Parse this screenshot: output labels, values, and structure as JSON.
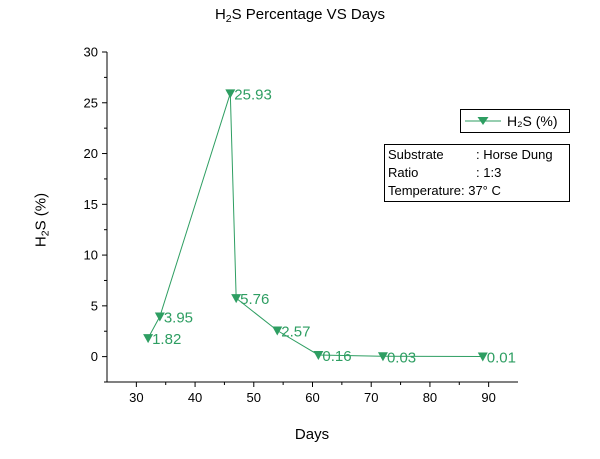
{
  "chart_data": {
    "type": "line",
    "title": {
      "pre": "H",
      "sub": "2",
      "post": "S Percentage VS Days"
    },
    "xlabel": "Days",
    "ylabel": {
      "pre": "H",
      "sub": "2",
      "post": "S (%)"
    },
    "xlim": [
      25,
      95
    ],
    "ylim": [
      -2.5,
      30
    ],
    "x_ticks": [
      30,
      40,
      50,
      60,
      70,
      80,
      90
    ],
    "y_ticks": [
      0,
      5,
      10,
      15,
      20,
      25,
      30
    ],
    "grid": false,
    "series": [
      {
        "name": "H₂S (%)",
        "x": [
          32,
          34,
          46,
          47,
          54,
          61,
          72,
          89
        ],
        "y": [
          1.82,
          3.95,
          25.93,
          5.76,
          2.57,
          0.16,
          0.03,
          0.01
        ],
        "labels": [
          "1.82",
          "3.95",
          "25.93",
          "5.76",
          "2.57",
          "0.16",
          "0.03",
          "0.01"
        ]
      }
    ],
    "colors": {
      "series": "#2e9e62",
      "axis": "#000000"
    },
    "legend": {
      "placement": "top-right",
      "marker": "down-triangle"
    },
    "annotation": {
      "rows": [
        {
          "key": "Substrate",
          "value": ": Horse Dung"
        },
        {
          "key": "Ratio",
          "value": ": 1:3"
        },
        {
          "key": "Temperature",
          "value": ": 37° C"
        }
      ]
    }
  }
}
